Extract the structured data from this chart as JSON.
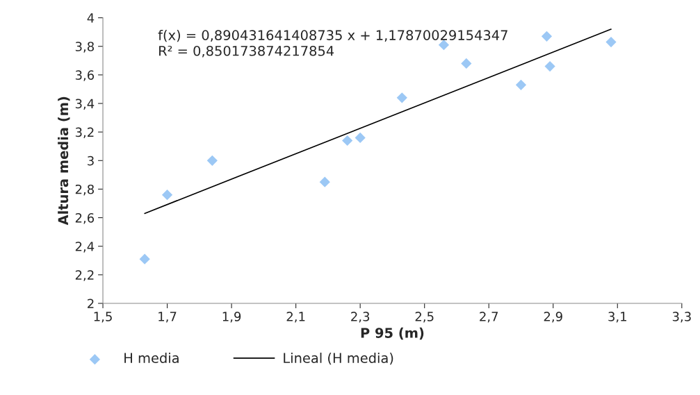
{
  "chart_data": {
    "type": "scatter",
    "xlabel": "P 95 (m)",
    "ylabel": "Altura media (m)",
    "annotations": [
      "f(x) = 0,890431641408735 x + 1,17870029154347",
      "R² = 0,850173874217854"
    ],
    "series": [
      {
        "name": "H media",
        "color": "#9cc8f5",
        "marker": "diamond",
        "x": [
          1.63,
          1.7,
          1.84,
          2.19,
          2.26,
          2.3,
          2.43,
          2.56,
          2.63,
          2.8,
          2.88,
          2.89,
          3.08
        ],
        "values": [
          2.31,
          2.76,
          3.0,
          2.85,
          3.14,
          3.16,
          3.44,
          3.81,
          3.68,
          3.53,
          3.87,
          3.66,
          3.83
        ]
      },
      {
        "name": "Lineal (H media)",
        "type": "line",
        "color": "#000000",
        "marker": "none",
        "x": [
          1.63,
          3.08
        ],
        "values": [
          2.63,
          3.92
        ]
      }
    ],
    "xlim": [
      1.5,
      3.3
    ],
    "ylim": [
      2,
      4
    ],
    "xticks": [
      {
        "value": 1.5,
        "label": "1,5"
      },
      {
        "value": 1.7,
        "label": "1,7"
      },
      {
        "value": 1.9,
        "label": "1,9"
      },
      {
        "value": 2.1,
        "label": "2,1"
      },
      {
        "value": 2.3,
        "label": "2,3"
      },
      {
        "value": 2.5,
        "label": "2,5"
      },
      {
        "value": 2.7,
        "label": "2,7"
      },
      {
        "value": 2.9,
        "label": "2,9"
      },
      {
        "value": 3.1,
        "label": "3,1"
      },
      {
        "value": 3.3,
        "label": "3,3"
      }
    ],
    "yticks": [
      2,
      {
        "value": 2.2,
        "label": "2,2"
      },
      {
        "value": 2.4,
        "label": "2,4"
      },
      {
        "value": 2.6,
        "label": "2,6"
      },
      {
        "value": 2.8,
        "label": "2,8"
      },
      3,
      {
        "value": 3.2,
        "label": "3,2"
      },
      {
        "value": 3.4,
        "label": "3,4"
      },
      {
        "value": 3.6,
        "label": "3,6"
      },
      {
        "value": 3.8,
        "label": "3,8"
      },
      4
    ],
    "grid": false,
    "legend": "bottom"
  }
}
